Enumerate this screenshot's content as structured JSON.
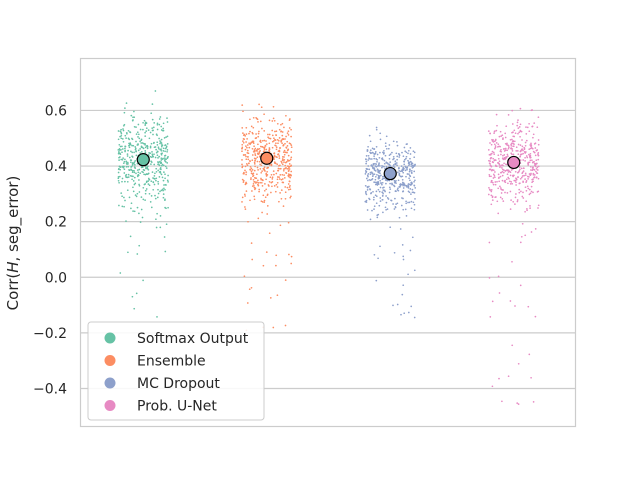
{
  "chart_data": {
    "type": "scatter",
    "style": "strip plot with jitter, mean markers per group",
    "title": "",
    "xlabel": "",
    "ylabel": "Corr(H, seg_error)",
    "ylabel_parts": {
      "prefix": "Corr(",
      "italic": "H",
      "suffix": ", seg_error)"
    },
    "ylim": [
      -0.535,
      0.785
    ],
    "yticks": [
      -0.4,
      -0.2,
      0.0,
      0.2,
      0.4,
      0.6
    ],
    "ytick_labels": [
      "−0.4",
      "−0.2",
      "0.0",
      "0.2",
      "0.4",
      "0.6"
    ],
    "grid": "horizontal",
    "legend_position": "lower-left",
    "series": [
      {
        "name": "Softmax Output",
        "color": "#66c2a5",
        "mean": 0.423,
        "median_band": [
          0.3,
          0.55
        ],
        "range": [
          -0.15,
          0.67
        ],
        "n": 500
      },
      {
        "name": "Ensemble",
        "color": "#fc8d62",
        "mean": 0.428,
        "median_band": [
          0.32,
          0.55
        ],
        "range": [
          -0.2,
          0.73
        ],
        "n": 500
      },
      {
        "name": "MC Dropout",
        "color": "#8da0cb",
        "mean": 0.373,
        "median_band": [
          0.28,
          0.46
        ],
        "range": [
          -0.15,
          0.64
        ],
        "n": 500
      },
      {
        "name": "Prob. U-Net",
        "color": "#e78ac3",
        "mean": 0.413,
        "median_band": [
          0.3,
          0.53
        ],
        "range": [
          -0.47,
          0.72
        ],
        "n": 500
      }
    ]
  }
}
